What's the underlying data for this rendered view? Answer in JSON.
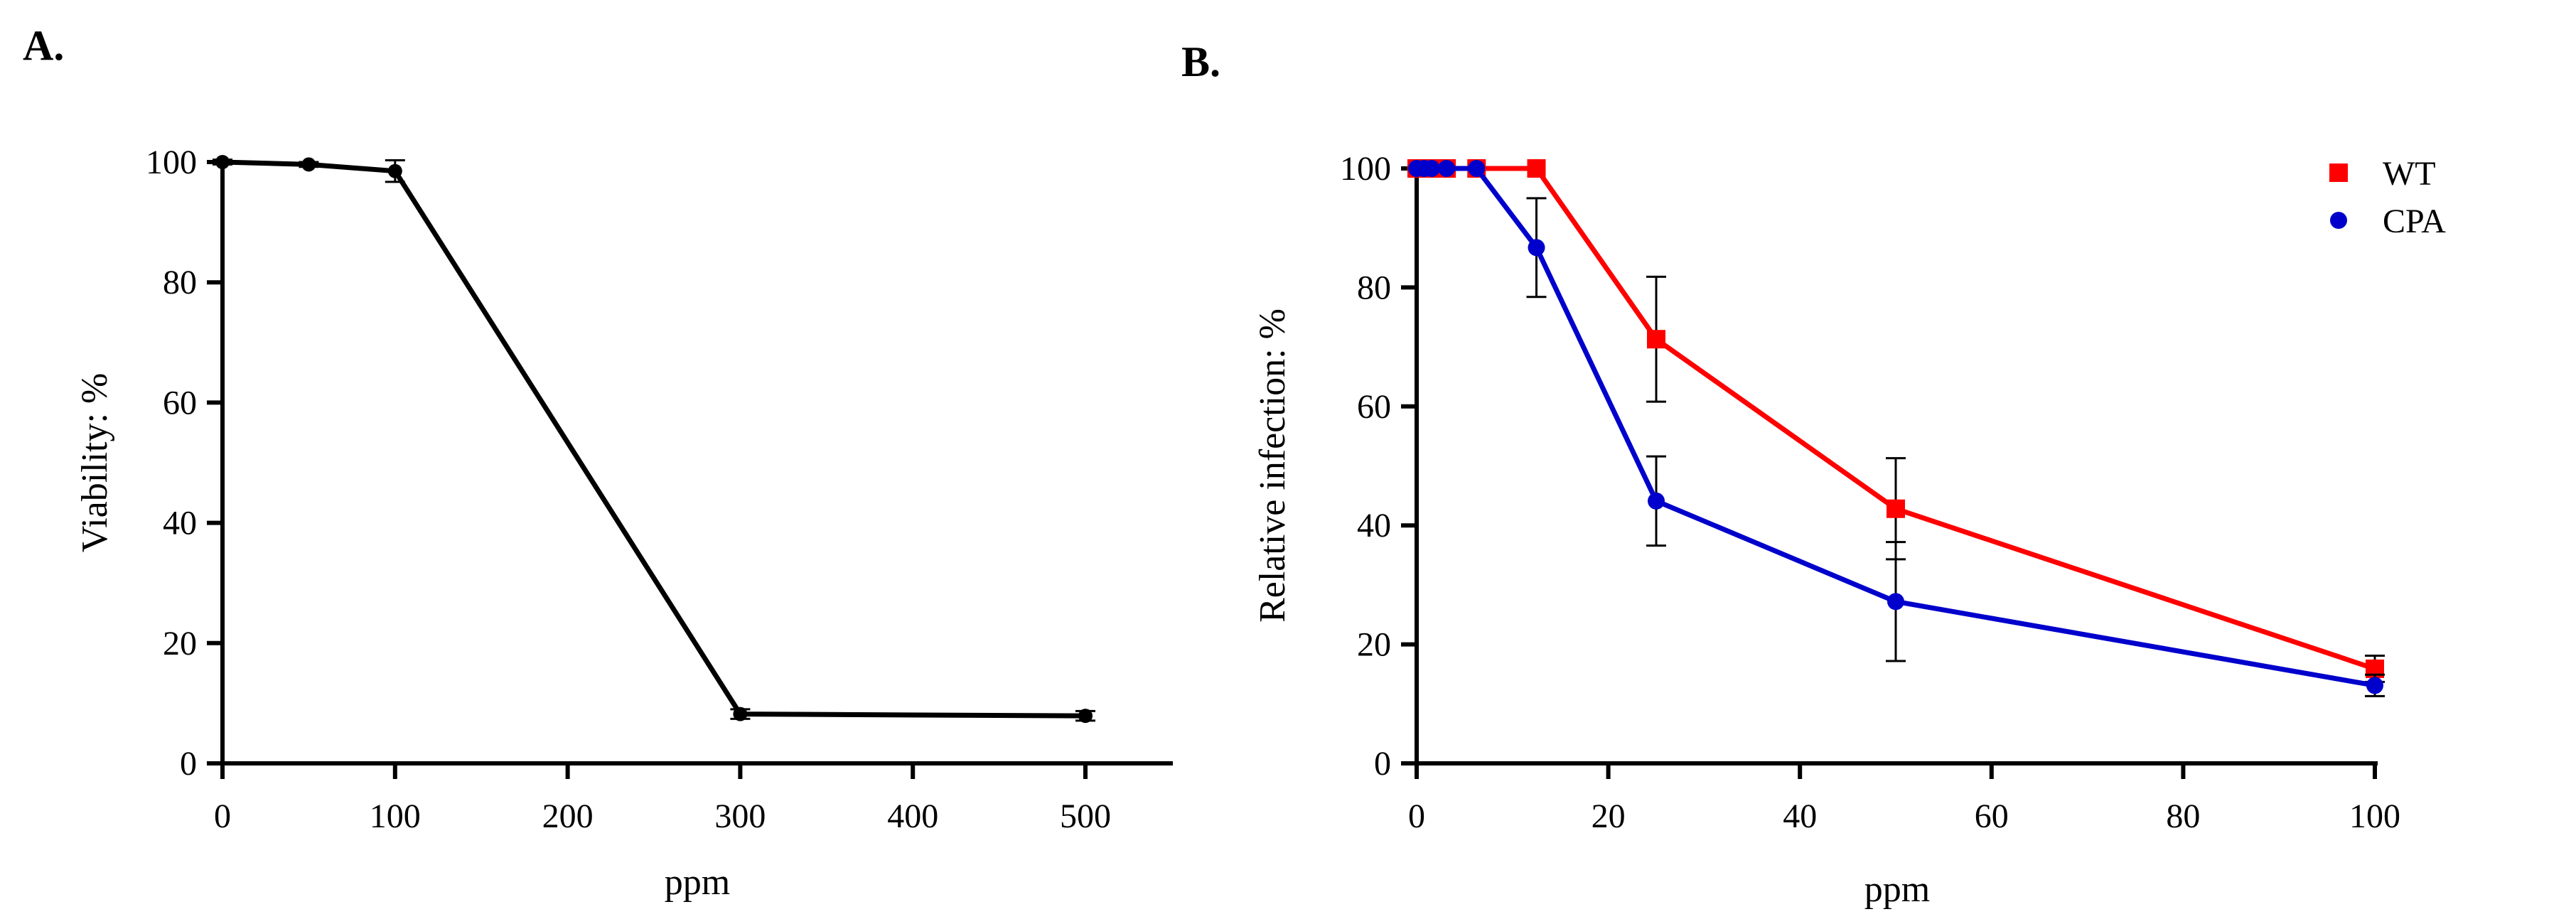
{
  "chart_data": [
    {
      "type": "line",
      "panel_label": "A.",
      "title": "",
      "xlabel": "ppm",
      "ylabel": "Viability: %",
      "xlim": [
        0,
        550
      ],
      "ylim": [
        0,
        100
      ],
      "xticks": [
        0,
        100,
        200,
        300,
        400,
        500
      ],
      "yticks": [
        0,
        20,
        40,
        60,
        80,
        100
      ],
      "grid": false,
      "series": [
        {
          "name": "Viability",
          "color": "#000000",
          "marker": "circle",
          "x": [
            0,
            50,
            100,
            300,
            500
          ],
          "y": [
            100,
            99.6,
            98.5,
            8.2,
            7.9
          ],
          "err": [
            0.4,
            0.4,
            1.8,
            0.8,
            0.8
          ]
        }
      ]
    },
    {
      "type": "line",
      "panel_label": "B.",
      "title": "",
      "xlabel": "ppm",
      "ylabel": "Relative infection: %",
      "xlim": [
        0,
        100
      ],
      "ylim": [
        0,
        100
      ],
      "xticks": [
        0,
        20,
        40,
        60,
        80,
        100
      ],
      "yticks": [
        0,
        20,
        40,
        60,
        80,
        100
      ],
      "grid": false,
      "legend_position": "top-right",
      "series": [
        {
          "name": "WT",
          "color": "#ff0000",
          "marker": "square",
          "x": [
            0,
            0.78,
            1.56,
            3.125,
            6.25,
            12.5,
            25,
            50,
            100
          ],
          "y": [
            100,
            100,
            100,
            100,
            100,
            100,
            71.3,
            42.8,
            15.9
          ],
          "err": [
            0,
            0,
            0,
            0,
            0,
            0,
            10.5,
            8.5,
            2.2
          ]
        },
        {
          "name": "CPA",
          "color": "#0000cc",
          "marker": "circle",
          "x": [
            0,
            0.78,
            1.56,
            3.125,
            6.25,
            12.5,
            25,
            50,
            100
          ],
          "y": [
            100,
            100,
            100,
            100,
            100,
            86.7,
            44.1,
            27.2,
            13.1
          ],
          "err": [
            0,
            0,
            0,
            0,
            0,
            8.3,
            7.5,
            10.0,
            1.8
          ]
        }
      ]
    }
  ]
}
